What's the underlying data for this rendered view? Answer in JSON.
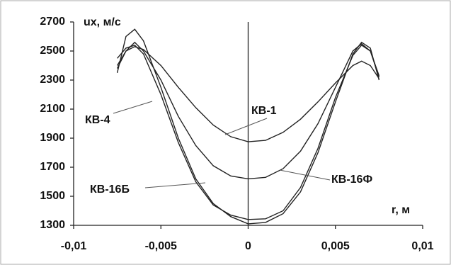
{
  "chart_data": {
    "type": "line",
    "y_label": "ux, м/с",
    "x_label": "r, м",
    "x": [
      -0.0075,
      -0.007,
      -0.0065,
      -0.006,
      -0.005,
      -0.004,
      -0.003,
      -0.002,
      -0.001,
      0,
      0.001,
      0.002,
      0.003,
      0.004,
      0.005,
      0.006,
      0.0065,
      0.007,
      0.0075
    ],
    "series": [
      {
        "name": "КВ-1",
        "color": "#222222",
        "values": [
          2400,
          2500,
          2530,
          2510,
          2400,
          2250,
          2110,
          1990,
          1910,
          1875,
          1885,
          1940,
          2030,
          2150,
          2280,
          2400,
          2430,
          2400,
          2310
        ]
      },
      {
        "name": "КВ-4",
        "color": "#222222",
        "values": [
          2350,
          2600,
          2650,
          2570,
          2250,
          1900,
          1620,
          1450,
          1360,
          1310,
          1320,
          1380,
          1530,
          1800,
          2150,
          2480,
          2560,
          2520,
          2300
        ]
      },
      {
        "name": "КВ-16Б",
        "color": "#222222",
        "values": [
          2450,
          2520,
          2540,
          2480,
          2200,
          1870,
          1600,
          1440,
          1370,
          1340,
          1345,
          1400,
          1560,
          1830,
          2180,
          2470,
          2540,
          2500,
          2320
        ]
      },
      {
        "name": "КВ-16Ф",
        "color": "#222222",
        "values": [
          2380,
          2500,
          2560,
          2500,
          2300,
          2050,
          1850,
          1710,
          1640,
          1620,
          1630,
          1690,
          1810,
          2000,
          2250,
          2500,
          2550,
          2500,
          2330
        ]
      }
    ],
    "xlim": [
      -0.01,
      0.01
    ],
    "xticks": [
      {
        "value": -0.01,
        "label": "-0,01"
      },
      {
        "value": -0.005,
        "label": "-0,005"
      },
      0,
      {
        "value": 0.005,
        "label": "0,005"
      },
      {
        "value": 0.01,
        "label": "0,01"
      }
    ],
    "ylim": [
      1300,
      2700
    ],
    "yticks": [
      1300,
      1500,
      1700,
      1900,
      2100,
      2300,
      2500,
      2700
    ],
    "grid": false
  }
}
